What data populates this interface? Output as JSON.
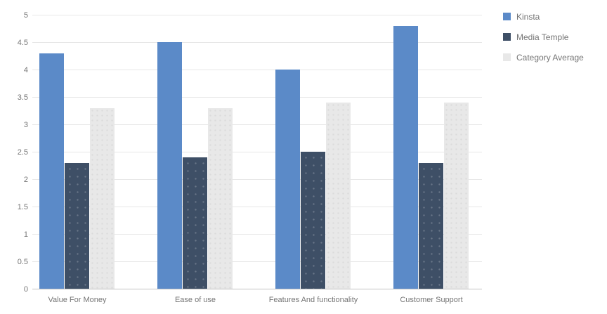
{
  "chart_data": {
    "type": "bar",
    "title": "",
    "xlabel": "",
    "ylabel": "",
    "categories": [
      "Value For Money",
      "Ease of use",
      "Features And functionality",
      "Customer Support"
    ],
    "series": [
      {
        "name": "Kinsta",
        "color": "#5b8ac8",
        "textured": false,
        "values": [
          4.3,
          4.5,
          4.0,
          4.8
        ]
      },
      {
        "name": "Media Temple",
        "color": "#3e4f66",
        "textured": true,
        "values": [
          2.3,
          2.4,
          2.5,
          2.3
        ]
      },
      {
        "name": "Category Average",
        "color": "#e8e8e8",
        "textured": true,
        "values": [
          3.3,
          3.3,
          3.4,
          3.4
        ]
      }
    ],
    "ylim": [
      0,
      5
    ],
    "yticks": [
      0,
      0.5,
      1,
      1.5,
      2,
      2.5,
      3,
      3.5,
      4,
      4.5,
      5
    ],
    "grid": true,
    "legend_position": "right"
  },
  "colors": {
    "background": "#ffffff",
    "gridline": "#e7e7e7",
    "baseline": "#c2c2c2",
    "axis_text": "#757575",
    "legend_text": "#757575"
  }
}
